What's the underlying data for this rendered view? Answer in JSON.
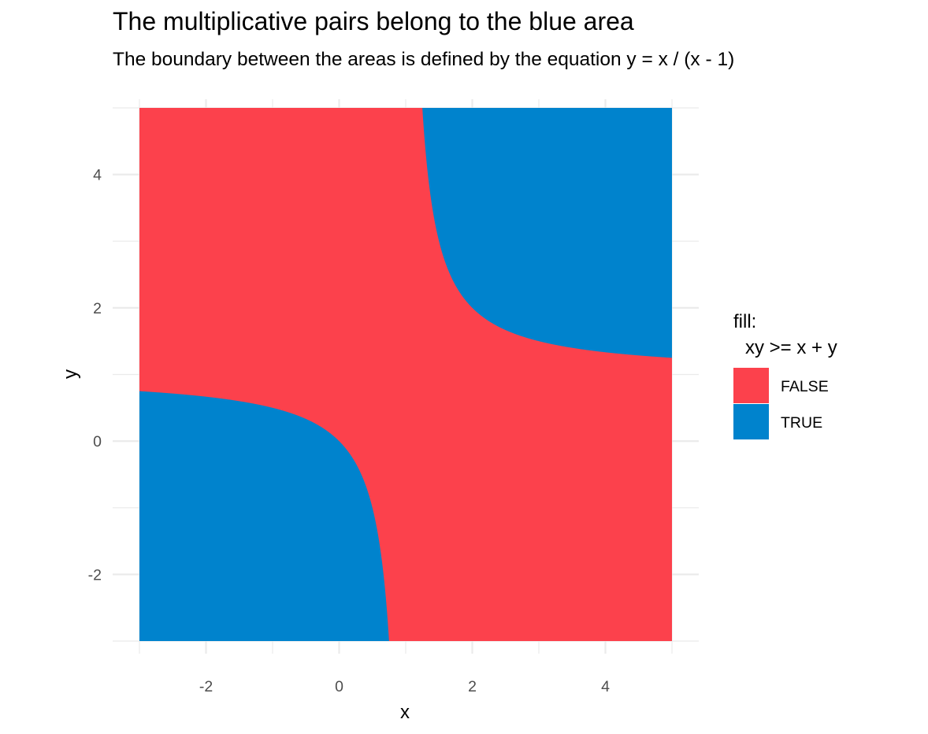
{
  "chart_data": {
    "type": "heatmap",
    "title": "The multiplicative pairs belong to the blue area",
    "subtitle": "The boundary between the areas is defined by the equation y = x / (x - 1)",
    "xlabel": "x",
    "ylabel": "y",
    "xlim": [
      -3,
      5
    ],
    "ylim": [
      -3,
      5
    ],
    "x_ticks": [
      -2,
      0,
      2,
      4
    ],
    "y_ticks": [
      -2,
      0,
      2,
      4
    ],
    "x_tick_labels": [
      "-2",
      "0",
      "2",
      "4"
    ],
    "y_tick_labels": [
      "-2",
      "0",
      "2",
      "4"
    ],
    "grid": true,
    "legend": {
      "title_line1": "fill:",
      "title_line2": "xy >= x + y",
      "placement": "right",
      "entries": [
        {
          "label": "FALSE",
          "color": "#FC414C"
        },
        {
          "label": "TRUE",
          "color": "#0083CD"
        }
      ]
    },
    "regions": [
      {
        "name": "FALSE",
        "color": "#FC414C",
        "condition": "xy < x + y"
      },
      {
        "name": "TRUE",
        "color": "#0083CD",
        "condition": "xy >= x + y"
      }
    ],
    "boundary_equation": "y = x / (x - 1)"
  }
}
